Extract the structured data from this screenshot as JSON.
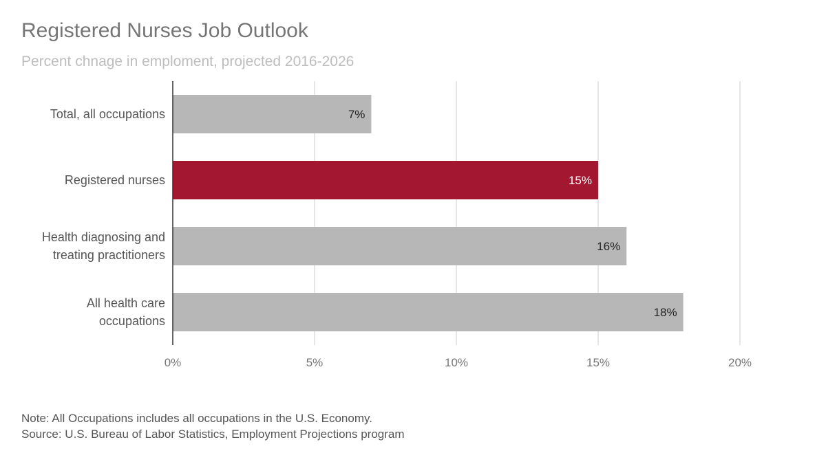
{
  "header": {
    "title": "Registered Nurses Job Outlook",
    "subtitle": "Percent chnage in emploment, projected 2016-2026"
  },
  "chart_data": {
    "type": "bar",
    "orientation": "horizontal",
    "title": "Registered Nurses Job Outlook",
    "subtitle": "Percent chnage in emploment, projected 2016-2026",
    "categories": [
      [
        "Total, all occupations"
      ],
      [
        "Registered nurses"
      ],
      [
        "Health diagnosing and",
        "treating practitioners"
      ],
      [
        "All health care",
        "occupations"
      ]
    ],
    "values": [
      7,
      15,
      16,
      18
    ],
    "data_labels": [
      "7%",
      "15%",
      "16%",
      "18%"
    ],
    "highlight_index": 1,
    "xlim": [
      0,
      20
    ],
    "x_ticks": [
      0,
      5,
      10,
      15,
      20
    ],
    "x_tick_labels": [
      "0%",
      "5%",
      "10%",
      "15%",
      "20%"
    ],
    "grid": true,
    "legend": "none",
    "colors": {
      "bar": "#b7b7b7",
      "highlight": "#a31830",
      "label_dark": "#222222",
      "label_light": "#ffffff",
      "grid": "#cccccc",
      "axis": "#333333",
      "tick_text": "#757575",
      "category_text": "#555555"
    }
  },
  "notes": {
    "note": "Note: All Occupations includes all occupations in the U.S. Economy.",
    "source": "Source: U.S. Bureau of Labor Statistics, Employment Projections program"
  }
}
